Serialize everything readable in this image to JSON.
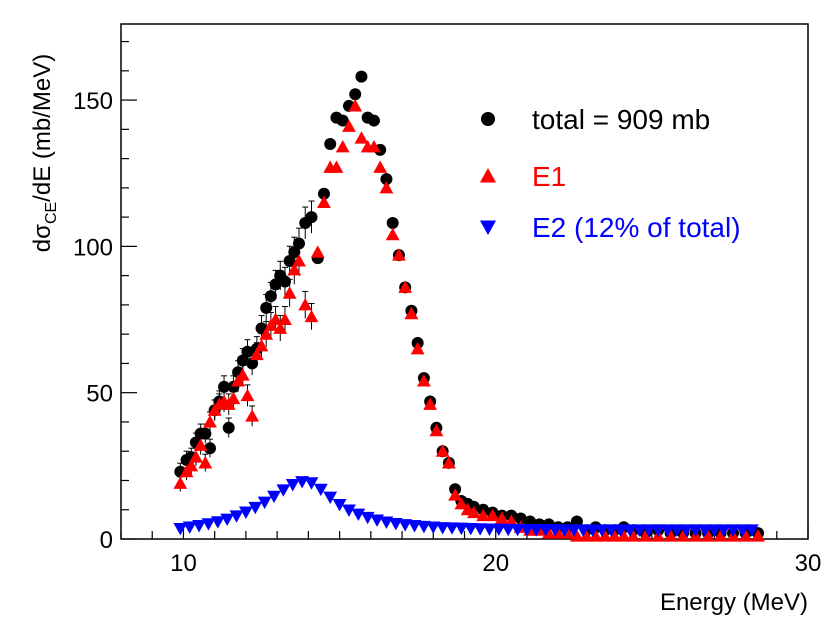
{
  "chart_data": {
    "type": "scatter",
    "xlabel": "Energy (MeV)",
    "ylabel_main": "dσ",
    "ylabel_sub": "CE",
    "ylabel_tail": "/dE (mb/MeV)",
    "xlim": [
      8,
      30
    ],
    "ylim": [
      0,
      176
    ],
    "x_ticks": [
      10,
      20,
      30
    ],
    "y_ticks": [
      0,
      50,
      100,
      150
    ],
    "grid": false,
    "legend_position": "top-right",
    "series": [
      {
        "name": "total = 909 mb",
        "marker": "circle",
        "color": "#000000",
        "x": [
          9.9,
          10.1,
          10.25,
          10.4,
          10.55,
          10.7,
          10.85,
          11.0,
          11.15,
          11.3,
          11.45,
          11.6,
          11.75,
          11.9,
          12.05,
          12.2,
          12.35,
          12.5,
          12.65,
          12.8,
          12.95,
          13.1,
          13.25,
          13.4,
          13.55,
          13.7,
          13.9,
          14.1,
          14.3,
          14.5,
          14.7,
          14.9,
          15.1,
          15.3,
          15.5,
          15.7,
          15.9,
          16.1,
          16.3,
          16.5,
          16.7,
          16.9,
          17.1,
          17.3,
          17.5,
          17.7,
          17.9,
          18.1,
          18.3,
          18.5,
          18.7,
          18.9,
          19.1,
          19.3,
          19.6,
          19.9,
          20.2,
          20.5,
          20.8,
          21.1,
          21.4,
          21.7,
          22.0,
          22.3,
          22.6,
          22.9,
          23.2,
          23.5,
          23.8,
          24.1,
          24.4,
          24.8,
          25.2,
          25.6,
          26.0,
          26.4,
          26.8,
          27.2,
          27.6,
          28.0,
          28.4
        ],
        "y": [
          23,
          27,
          28,
          33,
          36,
          36,
          31,
          44,
          47,
          52,
          38,
          52,
          57,
          61,
          64,
          60,
          65,
          72,
          79,
          83,
          87,
          90,
          88,
          95,
          98,
          101,
          108,
          110,
          96,
          118,
          135,
          144,
          143,
          148,
          152,
          158,
          144,
          143,
          133,
          123,
          108,
          97,
          86,
          78,
          67,
          55,
          47,
          38,
          30,
          26,
          17,
          13,
          12,
          11,
          10,
          9,
          8,
          8,
          7,
          6,
          5,
          5,
          4,
          4,
          6,
          3,
          4,
          3,
          3,
          4,
          3,
          2,
          3,
          2,
          2,
          2,
          2,
          2,
          2,
          2,
          2
        ]
      },
      {
        "name": "E1",
        "marker": "triangle-up",
        "color": "#ff0000",
        "x": [
          9.9,
          10.1,
          10.25,
          10.4,
          10.55,
          10.7,
          10.85,
          11.0,
          11.15,
          11.3,
          11.45,
          11.6,
          11.75,
          11.9,
          12.05,
          12.2,
          12.35,
          12.5,
          12.65,
          12.8,
          12.95,
          13.1,
          13.25,
          13.4,
          13.55,
          13.7,
          13.9,
          14.1,
          14.3,
          14.5,
          14.7,
          14.9,
          15.1,
          15.3,
          15.5,
          15.7,
          15.9,
          16.1,
          16.3,
          16.5,
          16.7,
          16.9,
          17.1,
          17.3,
          17.5,
          17.7,
          17.9,
          18.1,
          18.3,
          18.5,
          18.7,
          18.9,
          19.1,
          19.3,
          19.6,
          19.9,
          20.2,
          20.5,
          20.8,
          21.1,
          21.4,
          21.7,
          22.0,
          22.3,
          22.6,
          22.9,
          23.2,
          23.5,
          23.8,
          24.1,
          24.4,
          24.8,
          25.2,
          25.6,
          26.0,
          26.4,
          26.8,
          27.2,
          27.6,
          28.0,
          28.4
        ],
        "y": [
          19,
          23,
          25,
          28,
          32,
          26,
          40,
          44,
          46,
          47,
          46,
          48,
          54,
          56,
          49,
          42,
          63,
          66,
          70,
          73,
          75,
          72,
          75,
          84,
          92,
          95,
          80,
          76,
          98,
          115,
          127,
          127,
          134,
          141,
          148,
          137,
          134,
          134,
          127,
          120,
          104,
          97,
          86,
          77,
          65,
          54,
          46,
          37,
          30,
          26,
          15,
          12,
          10,
          9,
          8,
          8,
          7,
          6,
          4,
          3,
          3,
          2,
          2,
          2,
          1,
          1,
          1,
          1,
          1,
          1,
          1,
          1,
          1,
          1,
          1,
          1,
          1,
          1,
          1,
          1,
          1
        ]
      },
      {
        "name": "E2 (12% of total)",
        "marker": "triangle-down",
        "color": "#0000ff",
        "x": [
          9.9,
          10.2,
          10.5,
          10.8,
          11.1,
          11.4,
          11.7,
          12.0,
          12.3,
          12.6,
          12.9,
          13.2,
          13.5,
          13.8,
          14.1,
          14.4,
          14.7,
          15.0,
          15.3,
          15.6,
          15.9,
          16.2,
          16.5,
          16.8,
          17.1,
          17.4,
          17.7,
          18.0,
          18.3,
          18.6,
          18.9,
          19.2,
          19.5,
          19.8,
          20.1,
          20.4,
          20.7,
          21.0,
          21.3,
          21.6,
          21.9,
          22.2,
          22.5,
          22.8,
          23.1,
          23.4,
          23.7,
          24.0,
          24.3,
          24.6,
          24.9,
          25.2,
          25.5,
          25.8,
          26.1,
          26.4,
          26.7,
          27.0,
          27.3,
          27.6,
          27.9,
          28.2
        ],
        "y": [
          3.6,
          4.1,
          4.6,
          5.2,
          5.9,
          6.8,
          7.9,
          9.2,
          10.8,
          12.6,
          14.6,
          16.8,
          18.6,
          19.6,
          19.2,
          17.0,
          14.3,
          11.8,
          9.9,
          8.5,
          7.4,
          6.5,
          5.8,
          5.3,
          4.9,
          4.6,
          4.3,
          4.1,
          3.9,
          3.8,
          3.7,
          3.6,
          3.5,
          3.4,
          3.4,
          3.3,
          3.3,
          3.2,
          3.2,
          3.2,
          3.2,
          3.1,
          3.1,
          3.1,
          3.1,
          3.1,
          3.1,
          3.1,
          3.1,
          3.1,
          3.1,
          3.1,
          3.1,
          3.1,
          3.1,
          3.1,
          3.1,
          3.1,
          3.1,
          3.1,
          3.1,
          3.1
        ]
      }
    ]
  }
}
